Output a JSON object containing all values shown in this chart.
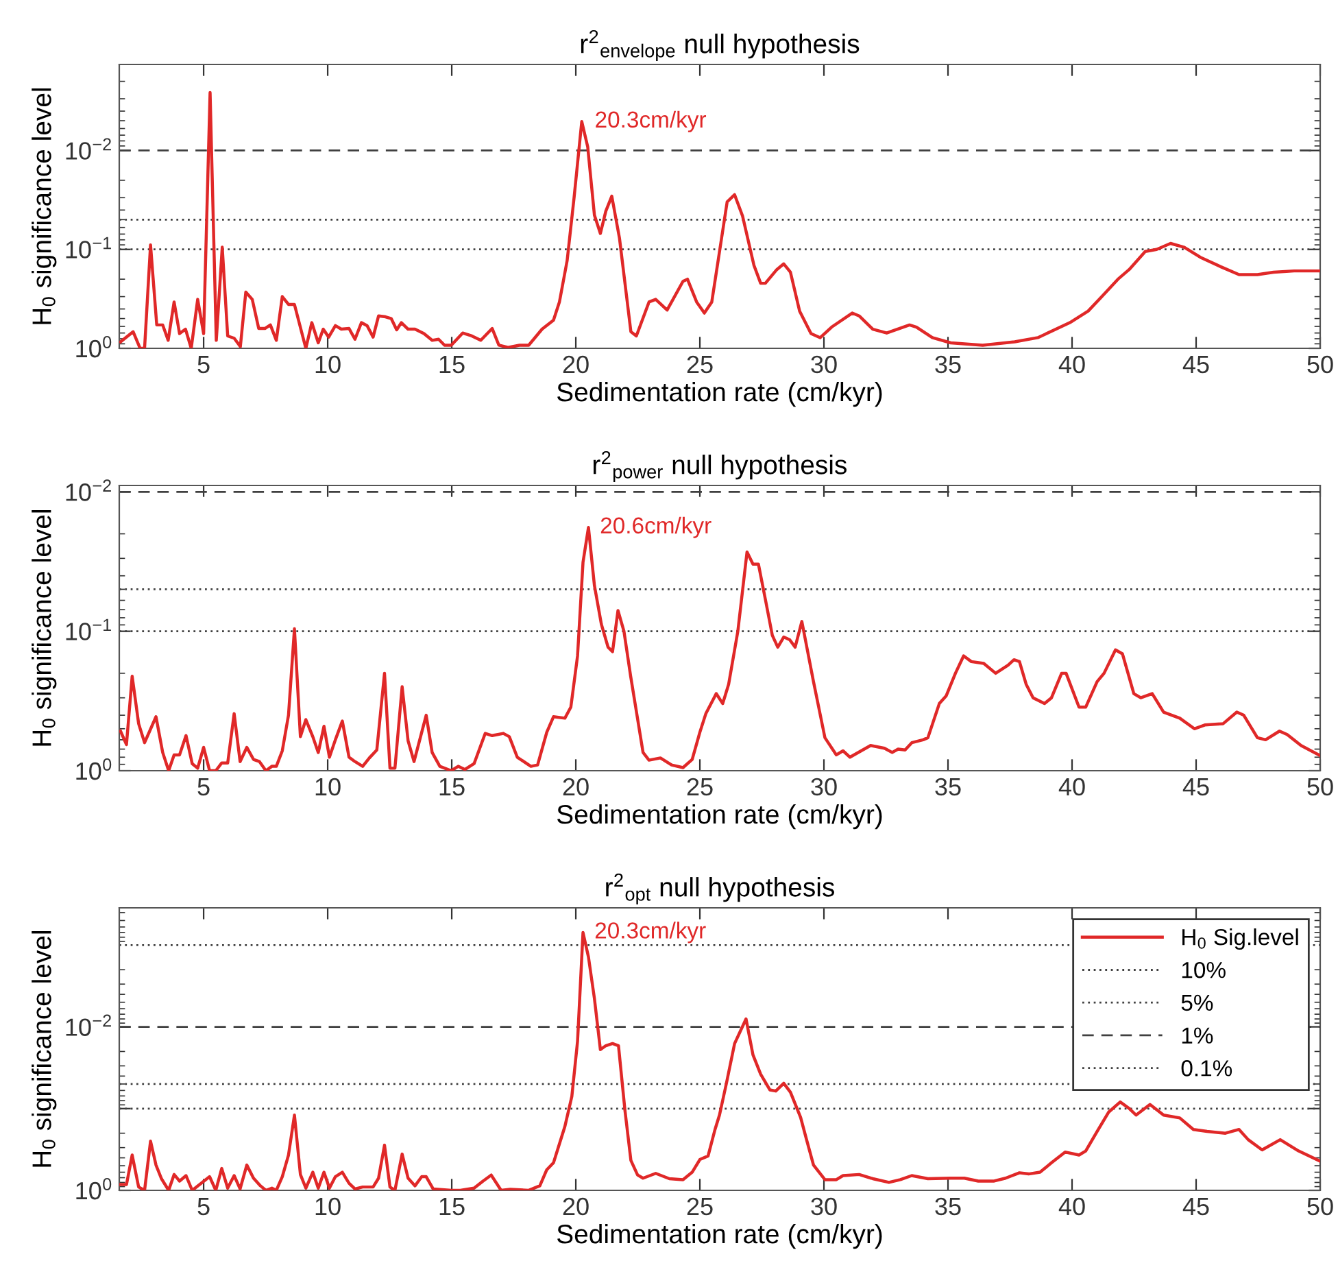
{
  "chart_data": [
    {
      "type": "line",
      "title": "r$^{2}$$_{envelope}$ null hypothesis",
      "xlabel": "Sedimentation rate (cm/kyr)",
      "ylabel": "H$_{0}$ significance level",
      "log": "y",
      "grid": false,
      "legend": false,
      "line_style": "solid",
      "marker": "none",
      "xlim": [
        1.6,
        50
      ],
      "xticks": [
        5,
        10,
        15,
        20,
        25,
        30,
        35,
        40,
        45,
        50
      ],
      "ylim": [
        1,
        0.00135
      ],
      "yticks": [
        {
          "value": 0.01,
          "label": "10$^{−2}$"
        },
        {
          "value": 0.1,
          "label": "10$^{−1}$"
        },
        {
          "value": 1,
          "label": "10$^{0}$"
        }
      ],
      "ref_lines": [
        {
          "axis": "y",
          "value": 0.1,
          "line_style": "dotted",
          "color": "#404040"
        },
        {
          "axis": "y",
          "value": 0.05,
          "line_style": "dotted",
          "color": "#404040"
        },
        {
          "axis": "y",
          "value": 0.01,
          "line_style": "dashed",
          "color": "#404040"
        }
      ],
      "annotations": [
        {
          "text": "20.3cm/kyr",
          "x": 20.3,
          "y": 0.0051
        }
      ],
      "series": [
        {
          "color": "#e02828",
          "x": [
            1.65,
            2.16,
            2.44,
            2.62,
            2.86,
            3.11,
            3.35,
            3.57,
            3.81,
            4.03,
            4.27,
            4.5,
            4.76,
            5.0,
            5.26,
            5.51,
            5.75,
            5.97,
            6.23,
            6.48,
            6.7,
            6.96,
            7.22,
            7.47,
            7.69,
            7.93,
            8.17,
            8.42,
            8.66,
            9.12,
            9.36,
            9.62,
            9.82,
            10.04,
            10.31,
            10.55,
            10.86,
            11.1,
            11.36,
            11.59,
            11.83,
            12.05,
            12.33,
            12.56,
            12.78,
            12.97,
            13.24,
            13.52,
            13.88,
            14.21,
            14.47,
            14.71,
            14.98,
            15.44,
            15.81,
            16.17,
            16.63,
            16.9,
            17.27,
            17.73,
            18.1,
            18.64,
            19.1,
            19.34,
            19.65,
            19.93,
            20.24,
            20.48,
            20.75,
            20.99,
            21.21,
            21.45,
            21.76,
            22.22,
            22.44,
            22.95,
            23.22,
            23.68,
            24.32,
            24.5,
            24.87,
            25.18,
            25.48,
            26.1,
            26.4,
            26.72,
            27.18,
            27.45,
            27.64,
            28.1,
            28.38,
            28.65,
            29.02,
            29.48,
            29.85,
            30.31,
            31.14,
            31.42,
            31.97,
            32.53,
            33.45,
            33.73,
            34.37,
            35.11,
            36.4,
            37.69,
            38.62,
            39.91,
            40.65,
            41.2,
            41.85,
            42.3,
            42.95,
            43.41,
            43.97,
            44.52,
            45.17,
            46.0,
            46.73,
            47.47,
            48.12,
            48.95,
            50.0
          ],
          "values": [
            0.86,
            0.68,
            1.0,
            1.0,
            0.09,
            0.58,
            0.58,
            0.83,
            0.34,
            0.71,
            0.64,
            1.0,
            0.32,
            0.71,
            0.0026,
            0.83,
            0.095,
            0.75,
            0.79,
            0.96,
            0.27,
            0.32,
            0.63,
            0.63,
            0.58,
            0.83,
            0.3,
            0.36,
            0.36,
            1.0,
            0.55,
            0.88,
            0.64,
            0.77,
            0.59,
            0.64,
            0.63,
            0.81,
            0.55,
            0.59,
            0.77,
            0.47,
            0.48,
            0.5,
            0.65,
            0.55,
            0.64,
            0.64,
            0.71,
            0.83,
            0.81,
            0.93,
            0.93,
            0.7,
            0.75,
            0.83,
            0.63,
            0.93,
            0.98,
            0.93,
            0.93,
            0.64,
            0.52,
            0.34,
            0.13,
            0.03,
            0.0051,
            0.0092,
            0.045,
            0.069,
            0.041,
            0.029,
            0.077,
            0.68,
            0.75,
            0.34,
            0.32,
            0.41,
            0.21,
            0.2,
            0.34,
            0.44,
            0.34,
            0.033,
            0.028,
            0.046,
            0.145,
            0.22,
            0.22,
            0.16,
            0.14,
            0.17,
            0.42,
            0.71,
            0.78,
            0.61,
            0.44,
            0.47,
            0.64,
            0.7,
            0.58,
            0.61,
            0.78,
            0.88,
            0.93,
            0.86,
            0.78,
            0.55,
            0.42,
            0.3,
            0.2,
            0.16,
            0.105,
            0.1,
            0.087,
            0.095,
            0.12,
            0.15,
            0.18,
            0.18,
            0.17,
            0.165,
            0.165
          ]
        }
      ]
    },
    {
      "type": "line",
      "title": "r$^{2}$$_{power}$ null hypothesis",
      "xlabel": "Sedimentation rate (cm/kyr)",
      "ylabel": "H$_{0}$ significance level",
      "log": "y",
      "grid": false,
      "legend": false,
      "line_style": "solid",
      "marker": "none",
      "xlim": [
        1.6,
        50
      ],
      "xticks": [
        5,
        10,
        15,
        20,
        25,
        30,
        35,
        40,
        45,
        50
      ],
      "ylim": [
        1,
        0.009
      ],
      "yticks": [
        {
          "value": 0.01,
          "label": "10$^{−2}$"
        },
        {
          "value": 0.1,
          "label": "10$^{−1}$"
        },
        {
          "value": 1,
          "label": "10$^{0}$"
        }
      ],
      "ref_lines": [
        {
          "axis": "y",
          "value": 0.1,
          "line_style": "dotted",
          "color": "#404040"
        },
        {
          "axis": "y",
          "value": 0.05,
          "line_style": "dotted",
          "color": "#404040"
        },
        {
          "axis": "y",
          "value": 0.01,
          "line_style": "dashed",
          "color": "#404040"
        }
      ],
      "annotations": [
        {
          "text": "20.6cm/kyr",
          "x": 20.51,
          "y": 0.018
        }
      ],
      "series": [
        {
          "color": "#e02828",
          "x": [
            1.65,
            1.89,
            2.12,
            2.38,
            2.62,
            3.08,
            3.35,
            3.59,
            3.81,
            4.03,
            4.29,
            4.54,
            4.76,
            5.0,
            5.24,
            5.49,
            5.73,
            5.97,
            6.23,
            6.47,
            6.74,
            7.01,
            7.25,
            7.51,
            7.75,
            7.93,
            8.17,
            8.42,
            8.66,
            8.9,
            9.12,
            9.4,
            9.62,
            9.85,
            10.07,
            10.31,
            10.59,
            10.86,
            11.1,
            11.41,
            11.68,
            11.98,
            12.29,
            12.51,
            12.71,
            13.0,
            13.24,
            13.48,
            13.97,
            14.21,
            14.52,
            14.98,
            15.26,
            15.53,
            15.9,
            16.35,
            16.63,
            17.08,
            17.32,
            17.64,
            18.19,
            18.46,
            18.83,
            19.1,
            19.56,
            19.8,
            20.07,
            20.29,
            20.51,
            20.75,
            21.03,
            21.3,
            21.48,
            21.7,
            21.94,
            22.21,
            22.71,
            22.95,
            23.41,
            23.86,
            24.32,
            24.69,
            25.0,
            25.24,
            25.66,
            25.92,
            26.16,
            26.53,
            26.9,
            27.14,
            27.36,
            27.64,
            27.92,
            28.14,
            28.38,
            28.62,
            28.84,
            29.11,
            29.58,
            30.04,
            30.5,
            30.77,
            31.05,
            31.88,
            32.44,
            32.75,
            32.99,
            33.27,
            33.54,
            34.0,
            34.19,
            34.65,
            34.93,
            35.3,
            35.63,
            35.94,
            36.44,
            36.92,
            37.42,
            37.66,
            37.88,
            38.15,
            38.43,
            38.89,
            39.17,
            39.58,
            39.76,
            40.28,
            40.55,
            41.01,
            41.29,
            41.75,
            42.03,
            42.49,
            42.77,
            43.23,
            43.69,
            44.34,
            44.93,
            45.35,
            46.09,
            46.64,
            46.92,
            47.47,
            47.8,
            48.36,
            48.67,
            49.23,
            50.0
          ],
          "values": [
            0.52,
            0.65,
            0.21,
            0.46,
            0.63,
            0.41,
            0.74,
            1.0,
            0.77,
            0.77,
            0.56,
            0.89,
            0.96,
            0.68,
            1.0,
            1.0,
            0.88,
            0.88,
            0.39,
            0.86,
            0.68,
            0.83,
            0.86,
            1.0,
            0.93,
            0.93,
            0.72,
            0.4,
            0.096,
            0.57,
            0.43,
            0.57,
            0.74,
            0.48,
            0.8,
            0.6,
            0.44,
            0.8,
            0.86,
            0.93,
            0.81,
            0.71,
            0.2,
            0.96,
            0.96,
            0.25,
            0.61,
            0.86,
            0.4,
            0.74,
            0.93,
            1.0,
            0.93,
            0.98,
            0.89,
            0.54,
            0.56,
            0.54,
            0.57,
            0.8,
            0.93,
            0.91,
            0.53,
            0.41,
            0.42,
            0.35,
            0.15,
            0.032,
            0.018,
            0.047,
            0.089,
            0.13,
            0.14,
            0.071,
            0.1,
            0.21,
            0.74,
            0.84,
            0.81,
            0.91,
            0.95,
            0.83,
            0.53,
            0.39,
            0.28,
            0.33,
            0.24,
            0.1,
            0.027,
            0.033,
            0.033,
            0.059,
            0.107,
            0.13,
            0.11,
            0.115,
            0.13,
            0.085,
            0.23,
            0.58,
            0.77,
            0.72,
            0.8,
            0.66,
            0.69,
            0.74,
            0.7,
            0.71,
            0.63,
            0.6,
            0.58,
            0.33,
            0.29,
            0.2,
            0.15,
            0.165,
            0.17,
            0.2,
            0.175,
            0.16,
            0.165,
            0.24,
            0.3,
            0.33,
            0.3,
            0.2,
            0.2,
            0.35,
            0.35,
            0.23,
            0.2,
            0.136,
            0.145,
            0.28,
            0.3,
            0.28,
            0.38,
            0.42,
            0.5,
            0.47,
            0.46,
            0.38,
            0.4,
            0.58,
            0.6,
            0.52,
            0.55,
            0.66,
            0.78
          ]
        }
      ]
    },
    {
      "type": "line",
      "title": "r$^{2}$$_{opt}$ null hypothesis",
      "xlabel": "Sedimentation rate (cm/kyr)",
      "ylabel": "H$_{0}$ significance level",
      "log": "y",
      "grid": false,
      "legend": "top right",
      "line_style": "solid",
      "marker": "none",
      "xlim": [
        1.6,
        50
      ],
      "xticks": [
        5,
        10,
        15,
        20,
        25,
        30,
        35,
        40,
        45,
        50
      ],
      "ylim": [
        1,
        0.00035
      ],
      "yticks": [
        {
          "value": 0.01,
          "label": "10$^{−2}$"
        },
        {
          "value": 0.1,
          "label": null
        },
        {
          "value": 1,
          "label": "10$^{0}$"
        }
      ],
      "ref_lines": [
        {
          "axis": "y",
          "value": 0.1,
          "label": "10%",
          "line_style": "dotted",
          "color": "#404040"
        },
        {
          "axis": "y",
          "value": 0.05,
          "label": "5%",
          "line_style": "dotted",
          "color": "#404040"
        },
        {
          "axis": "y",
          "value": 0.01,
          "label": "1%",
          "line_style": "dashed",
          "color": "#404040"
        },
        {
          "axis": "y",
          "value": 0.001,
          "label": "0.1%",
          "line_style": "dotted",
          "color": "#404040"
        }
      ],
      "annotations": [
        {
          "text": "20.3cm/kyr",
          "x": 20.29,
          "y": 0.0007
        }
      ],
      "series": [
        {
          "name": "H$_{0}$ Sig.level",
          "color": "#e02828",
          "x": [
            1.65,
            1.89,
            2.12,
            2.38,
            2.62,
            2.86,
            3.08,
            3.3,
            3.59,
            3.81,
            4.03,
            4.29,
            4.54,
            5.24,
            5.49,
            5.73,
            5.97,
            6.23,
            6.47,
            6.74,
            7.01,
            7.29,
            7.51,
            7.75,
            7.93,
            8.17,
            8.42,
            8.66,
            8.9,
            9.12,
            9.4,
            9.62,
            9.85,
            10.07,
            10.31,
            10.59,
            10.86,
            11.1,
            11.41,
            11.83,
            12.05,
            12.29,
            12.51,
            12.71,
            13.0,
            13.24,
            13.52,
            13.79,
            13.97,
            14.25,
            14.98,
            15.35,
            15.9,
            16.26,
            16.59,
            16.99,
            17.36,
            18.09,
            18.55,
            18.83,
            19.1,
            19.56,
            19.84,
            20.07,
            20.29,
            20.51,
            20.75,
            20.99,
            21.21,
            21.48,
            21.72,
            21.98,
            22.22,
            22.49,
            22.71,
            23.22,
            23.77,
            24.32,
            24.69,
            25.0,
            25.33,
            25.61,
            25.79,
            26.07,
            26.4,
            26.86,
            27.14,
            27.45,
            27.82,
            28.06,
            28.38,
            28.65,
            29.06,
            29.3,
            29.58,
            30.04,
            30.5,
            30.77,
            31.42,
            31.97,
            32.62,
            33.08,
            33.54,
            34.19,
            35.11,
            35.66,
            36.22,
            36.86,
            37.32,
            37.88,
            38.25,
            38.71,
            39.17,
            39.72,
            40.28,
            40.55,
            41.01,
            41.48,
            41.94,
            42.31,
            42.58,
            43.14,
            43.69,
            44.34,
            44.89,
            45.44,
            46.18,
            46.73,
            47.1,
            47.66,
            48.39,
            49.13,
            50.0
          ],
          "values": [
            0.85,
            0.85,
            0.37,
            0.91,
            1.0,
            0.25,
            0.49,
            0.72,
            1.0,
            0.64,
            0.77,
            0.66,
            1.0,
            0.68,
            1.0,
            0.54,
            0.94,
            0.66,
            0.96,
            0.49,
            0.71,
            0.88,
            1.0,
            0.94,
            1.0,
            0.68,
            0.37,
            0.12,
            0.64,
            0.94,
            0.6,
            0.94,
            0.6,
            0.94,
            0.68,
            0.6,
            0.82,
            0.96,
            0.91,
            0.91,
            0.71,
            0.28,
            0.91,
            1.0,
            0.36,
            0.71,
            0.88,
            0.68,
            0.68,
            0.96,
            1.0,
            1.0,
            0.94,
            0.77,
            0.65,
            1.0,
            0.97,
            1.0,
            0.88,
            0.56,
            0.46,
            0.165,
            0.071,
            0.015,
            0.0007,
            0.0014,
            0.0045,
            0.019,
            0.017,
            0.016,
            0.017,
            0.105,
            0.43,
            0.65,
            0.71,
            0.62,
            0.72,
            0.74,
            0.6,
            0.42,
            0.38,
            0.18,
            0.12,
            0.049,
            0.016,
            0.008,
            0.022,
            0.038,
            0.059,
            0.061,
            0.049,
            0.063,
            0.128,
            0.24,
            0.49,
            0.74,
            0.74,
            0.66,
            0.64,
            0.72,
            0.8,
            0.74,
            0.66,
            0.72,
            0.71,
            0.71,
            0.77,
            0.77,
            0.71,
            0.61,
            0.63,
            0.6,
            0.46,
            0.34,
            0.37,
            0.33,
            0.19,
            0.11,
            0.083,
            0.1,
            0.12,
            0.089,
            0.12,
            0.13,
            0.18,
            0.19,
            0.2,
            0.18,
            0.24,
            0.32,
            0.24,
            0.33,
            0.44
          ]
        }
      ]
    }
  ]
}
